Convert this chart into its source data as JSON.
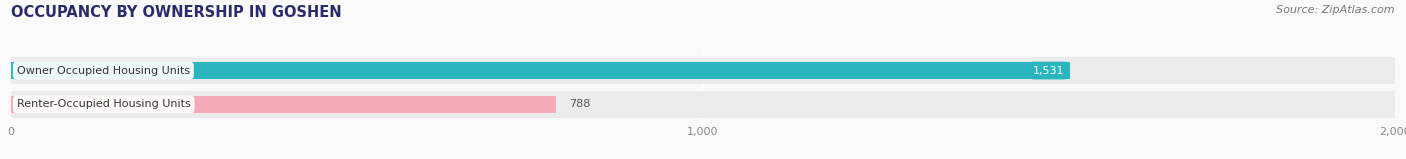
{
  "title": "OCCUPANCY BY OWNERSHIP IN GOSHEN",
  "source": "Source: ZipAtlas.com",
  "categories": [
    "Owner Occupied Housing Units",
    "Renter-Occupied Housing Units"
  ],
  "values": [
    1531,
    788
  ],
  "bar_colors": [
    "#2ab5be",
    "#f4abb9"
  ],
  "value_label_colors": [
    "white",
    "#555555"
  ],
  "value_label_inside": [
    true,
    false
  ],
  "xlim": [
    0,
    2000
  ],
  "xticks": [
    0,
    1000,
    2000
  ],
  "xtick_labels": [
    "0",
    "1,000",
    "2,000"
  ],
  "title_fontsize": 10.5,
  "source_fontsize": 8,
  "bar_label_fontsize": 8,
  "value_label_fontsize": 8,
  "bar_height": 0.52,
  "background_color": "#f9f9f9",
  "bar_background_color": "#ebebeb",
  "cat_label_color": "#333333",
  "tick_color": "#888888"
}
